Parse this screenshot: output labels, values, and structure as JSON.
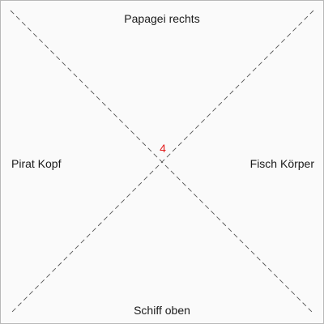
{
  "labels": {
    "top": "Papagei rechts",
    "bottom": "Schiff oben",
    "left": "Pirat Kopf",
    "right": "Fisch Körper"
  },
  "center_number": "4",
  "colors": {
    "background": "#fafafa",
    "border": "#b8b8b8",
    "line": "#555555",
    "text": "#1a1a1a",
    "accent": "#e31b1b"
  }
}
